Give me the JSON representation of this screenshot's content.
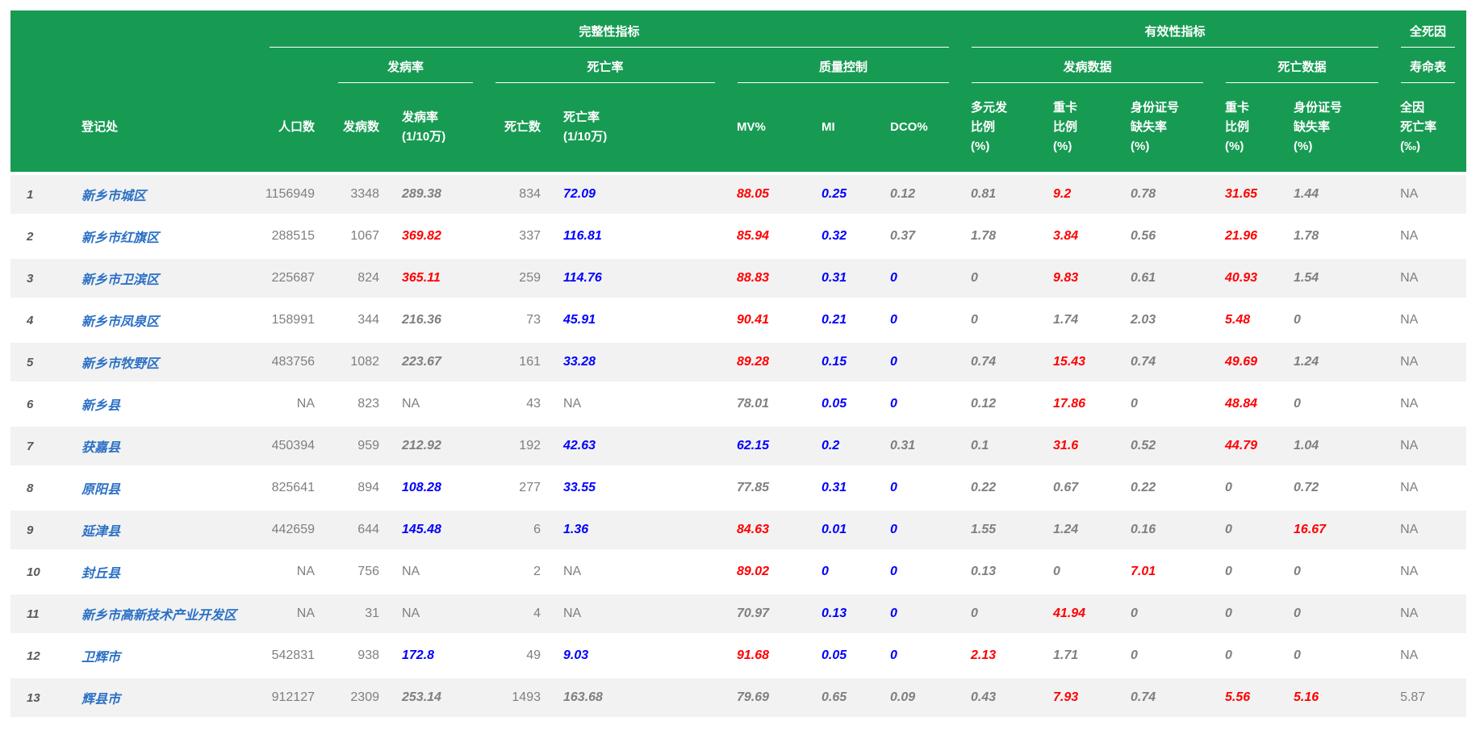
{
  "colors": {
    "header_green": "#179b53",
    "stripe_gray": "#f2f2f2",
    "value_gray": "#7f7f7f",
    "value_red": "#ff0000",
    "value_blue": "#0000ff",
    "registry_blue": "#2a70c5",
    "index_gray": "#595959"
  },
  "table": {
    "groups_level1": {
      "completeness": "完整性指标",
      "validity": "有效性指标",
      "all_cause": "全死因"
    },
    "groups_level2": {
      "incidence": "发病率",
      "mortality": "死亡率",
      "quality_control": "质量控制",
      "incidence_data": "发病数据",
      "death_data": "死亡数据",
      "life_table": "寿命表"
    },
    "columns": {
      "registry": "登记处",
      "population": "人口数",
      "cases": "发病数",
      "incidence_rate": "发病率\n(1/10万)",
      "deaths": "死亡数",
      "mortality_rate": "死亡率\n(1/10万)",
      "mv_pct": "MV%",
      "mi": "MI",
      "dco_pct": "DCO%",
      "multi_primary_pct": "多元发\n比例\n(%)",
      "dup_card_pct_inc": "重卡\n比例\n(%)",
      "id_missing_pct_inc": "身份证号\n缺失率\n(%)",
      "dup_card_pct_death": "重卡\n比例\n(%)",
      "id_missing_pct_death": "身份证号\n缺失率\n(%)",
      "all_cause_rate": "全因\n死亡率\n(‰)"
    },
    "rows": [
      {
        "idx": "1",
        "name": "新乡市城区",
        "cells": [
          [
            "1156949",
            "n"
          ],
          [
            "3348",
            "n"
          ],
          [
            "289.38",
            "g"
          ],
          [
            "834",
            "n"
          ],
          [
            "72.09",
            "b"
          ],
          [
            "88.05",
            "r"
          ],
          [
            "0.25",
            "b"
          ],
          [
            "0.12",
            "g"
          ],
          [
            "0.81",
            "g"
          ],
          [
            "9.2",
            "r"
          ],
          [
            "0.78",
            "g"
          ],
          [
            "31.65",
            "r"
          ],
          [
            "1.44",
            "g"
          ],
          [
            "NA",
            "n"
          ]
        ]
      },
      {
        "idx": "2",
        "name": "新乡市红旗区",
        "cells": [
          [
            "288515",
            "n"
          ],
          [
            "1067",
            "n"
          ],
          [
            "369.82",
            "r"
          ],
          [
            "337",
            "n"
          ],
          [
            "116.81",
            "b"
          ],
          [
            "85.94",
            "r"
          ],
          [
            "0.32",
            "b"
          ],
          [
            "0.37",
            "g"
          ],
          [
            "1.78",
            "g"
          ],
          [
            "3.84",
            "r"
          ],
          [
            "0.56",
            "g"
          ],
          [
            "21.96",
            "r"
          ],
          [
            "1.78",
            "g"
          ],
          [
            "NA",
            "n"
          ]
        ]
      },
      {
        "idx": "3",
        "name": "新乡市卫滨区",
        "cells": [
          [
            "225687",
            "n"
          ],
          [
            "824",
            "n"
          ],
          [
            "365.11",
            "r"
          ],
          [
            "259",
            "n"
          ],
          [
            "114.76",
            "b"
          ],
          [
            "88.83",
            "r"
          ],
          [
            "0.31",
            "b"
          ],
          [
            "0",
            "b"
          ],
          [
            "0",
            "g"
          ],
          [
            "9.83",
            "r"
          ],
          [
            "0.61",
            "g"
          ],
          [
            "40.93",
            "r"
          ],
          [
            "1.54",
            "g"
          ],
          [
            "NA",
            "n"
          ]
        ]
      },
      {
        "idx": "4",
        "name": "新乡市凤泉区",
        "cells": [
          [
            "158991",
            "n"
          ],
          [
            "344",
            "n"
          ],
          [
            "216.36",
            "g"
          ],
          [
            "73",
            "n"
          ],
          [
            "45.91",
            "b"
          ],
          [
            "90.41",
            "r"
          ],
          [
            "0.21",
            "b"
          ],
          [
            "0",
            "b"
          ],
          [
            "0",
            "g"
          ],
          [
            "1.74",
            "g"
          ],
          [
            "2.03",
            "g"
          ],
          [
            "5.48",
            "r"
          ],
          [
            "0",
            "g"
          ],
          [
            "NA",
            "n"
          ]
        ]
      },
      {
        "idx": "5",
        "name": "新乡市牧野区",
        "cells": [
          [
            "483756",
            "n"
          ],
          [
            "1082",
            "n"
          ],
          [
            "223.67",
            "g"
          ],
          [
            "161",
            "n"
          ],
          [
            "33.28",
            "b"
          ],
          [
            "89.28",
            "r"
          ],
          [
            "0.15",
            "b"
          ],
          [
            "0",
            "b"
          ],
          [
            "0.74",
            "g"
          ],
          [
            "15.43",
            "r"
          ],
          [
            "0.74",
            "g"
          ],
          [
            "49.69",
            "r"
          ],
          [
            "1.24",
            "g"
          ],
          [
            "NA",
            "n"
          ]
        ]
      },
      {
        "idx": "6",
        "name": "新乡县",
        "cells": [
          [
            "NA",
            "n"
          ],
          [
            "823",
            "n"
          ],
          [
            "NA",
            "n"
          ],
          [
            "43",
            "n"
          ],
          [
            "NA",
            "n"
          ],
          [
            "78.01",
            "g"
          ],
          [
            "0.05",
            "b"
          ],
          [
            "0",
            "b"
          ],
          [
            "0.12",
            "g"
          ],
          [
            "17.86",
            "r"
          ],
          [
            "0",
            "g"
          ],
          [
            "48.84",
            "r"
          ],
          [
            "0",
            "g"
          ],
          [
            "NA",
            "n"
          ]
        ]
      },
      {
        "idx": "7",
        "name": "获嘉县",
        "cells": [
          [
            "450394",
            "n"
          ],
          [
            "959",
            "n"
          ],
          [
            "212.92",
            "g"
          ],
          [
            "192",
            "n"
          ],
          [
            "42.63",
            "b"
          ],
          [
            "62.15",
            "b"
          ],
          [
            "0.2",
            "b"
          ],
          [
            "0.31",
            "g"
          ],
          [
            "0.1",
            "g"
          ],
          [
            "31.6",
            "r"
          ],
          [
            "0.52",
            "g"
          ],
          [
            "44.79",
            "r"
          ],
          [
            "1.04",
            "g"
          ],
          [
            "NA",
            "n"
          ]
        ]
      },
      {
        "idx": "8",
        "name": "原阳县",
        "cells": [
          [
            "825641",
            "n"
          ],
          [
            "894",
            "n"
          ],
          [
            "108.28",
            "b"
          ],
          [
            "277",
            "n"
          ],
          [
            "33.55",
            "b"
          ],
          [
            "77.85",
            "g"
          ],
          [
            "0.31",
            "b"
          ],
          [
            "0",
            "b"
          ],
          [
            "0.22",
            "g"
          ],
          [
            "0.67",
            "g"
          ],
          [
            "0.22",
            "g"
          ],
          [
            "0",
            "g"
          ],
          [
            "0.72",
            "g"
          ],
          [
            "NA",
            "n"
          ]
        ]
      },
      {
        "idx": "9",
        "name": "延津县",
        "cells": [
          [
            "442659",
            "n"
          ],
          [
            "644",
            "n"
          ],
          [
            "145.48",
            "b"
          ],
          [
            "6",
            "n"
          ],
          [
            "1.36",
            "b"
          ],
          [
            "84.63",
            "r"
          ],
          [
            "0.01",
            "b"
          ],
          [
            "0",
            "b"
          ],
          [
            "1.55",
            "g"
          ],
          [
            "1.24",
            "g"
          ],
          [
            "0.16",
            "g"
          ],
          [
            "0",
            "g"
          ],
          [
            "16.67",
            "r"
          ],
          [
            "NA",
            "n"
          ]
        ]
      },
      {
        "idx": "10",
        "name": "封丘县",
        "cells": [
          [
            "NA",
            "n"
          ],
          [
            "756",
            "n"
          ],
          [
            "NA",
            "n"
          ],
          [
            "2",
            "n"
          ],
          [
            "NA",
            "n"
          ],
          [
            "89.02",
            "r"
          ],
          [
            "0",
            "b"
          ],
          [
            "0",
            "b"
          ],
          [
            "0.13",
            "g"
          ],
          [
            "0",
            "g"
          ],
          [
            "7.01",
            "r"
          ],
          [
            "0",
            "g"
          ],
          [
            "0",
            "g"
          ],
          [
            "NA",
            "n"
          ]
        ]
      },
      {
        "idx": "11",
        "name": "新乡市高新技术产业开发区",
        "cells": [
          [
            "NA",
            "n"
          ],
          [
            "31",
            "n"
          ],
          [
            "NA",
            "n"
          ],
          [
            "4",
            "n"
          ],
          [
            "NA",
            "n"
          ],
          [
            "70.97",
            "g"
          ],
          [
            "0.13",
            "b"
          ],
          [
            "0",
            "b"
          ],
          [
            "0",
            "g"
          ],
          [
            "41.94",
            "r"
          ],
          [
            "0",
            "g"
          ],
          [
            "0",
            "g"
          ],
          [
            "0",
            "g"
          ],
          [
            "NA",
            "n"
          ]
        ]
      },
      {
        "idx": "12",
        "name": "卫辉市",
        "cells": [
          [
            "542831",
            "n"
          ],
          [
            "938",
            "n"
          ],
          [
            "172.8",
            "b"
          ],
          [
            "49",
            "n"
          ],
          [
            "9.03",
            "b"
          ],
          [
            "91.68",
            "r"
          ],
          [
            "0.05",
            "b"
          ],
          [
            "0",
            "b"
          ],
          [
            "2.13",
            "r"
          ],
          [
            "1.71",
            "g"
          ],
          [
            "0",
            "g"
          ],
          [
            "0",
            "g"
          ],
          [
            "0",
            "g"
          ],
          [
            "NA",
            "n"
          ]
        ]
      },
      {
        "idx": "13",
        "name": "辉县市",
        "cells": [
          [
            "912127",
            "n"
          ],
          [
            "2309",
            "n"
          ],
          [
            "253.14",
            "g"
          ],
          [
            "1493",
            "n"
          ],
          [
            "163.68",
            "g"
          ],
          [
            "79.69",
            "g"
          ],
          [
            "0.65",
            "g"
          ],
          [
            "0.09",
            "g"
          ],
          [
            "0.43",
            "g"
          ],
          [
            "7.93",
            "r"
          ],
          [
            "0.74",
            "g"
          ],
          [
            "5.56",
            "r"
          ],
          [
            "5.16",
            "r"
          ],
          [
            "5.87",
            "n"
          ]
        ]
      }
    ]
  }
}
